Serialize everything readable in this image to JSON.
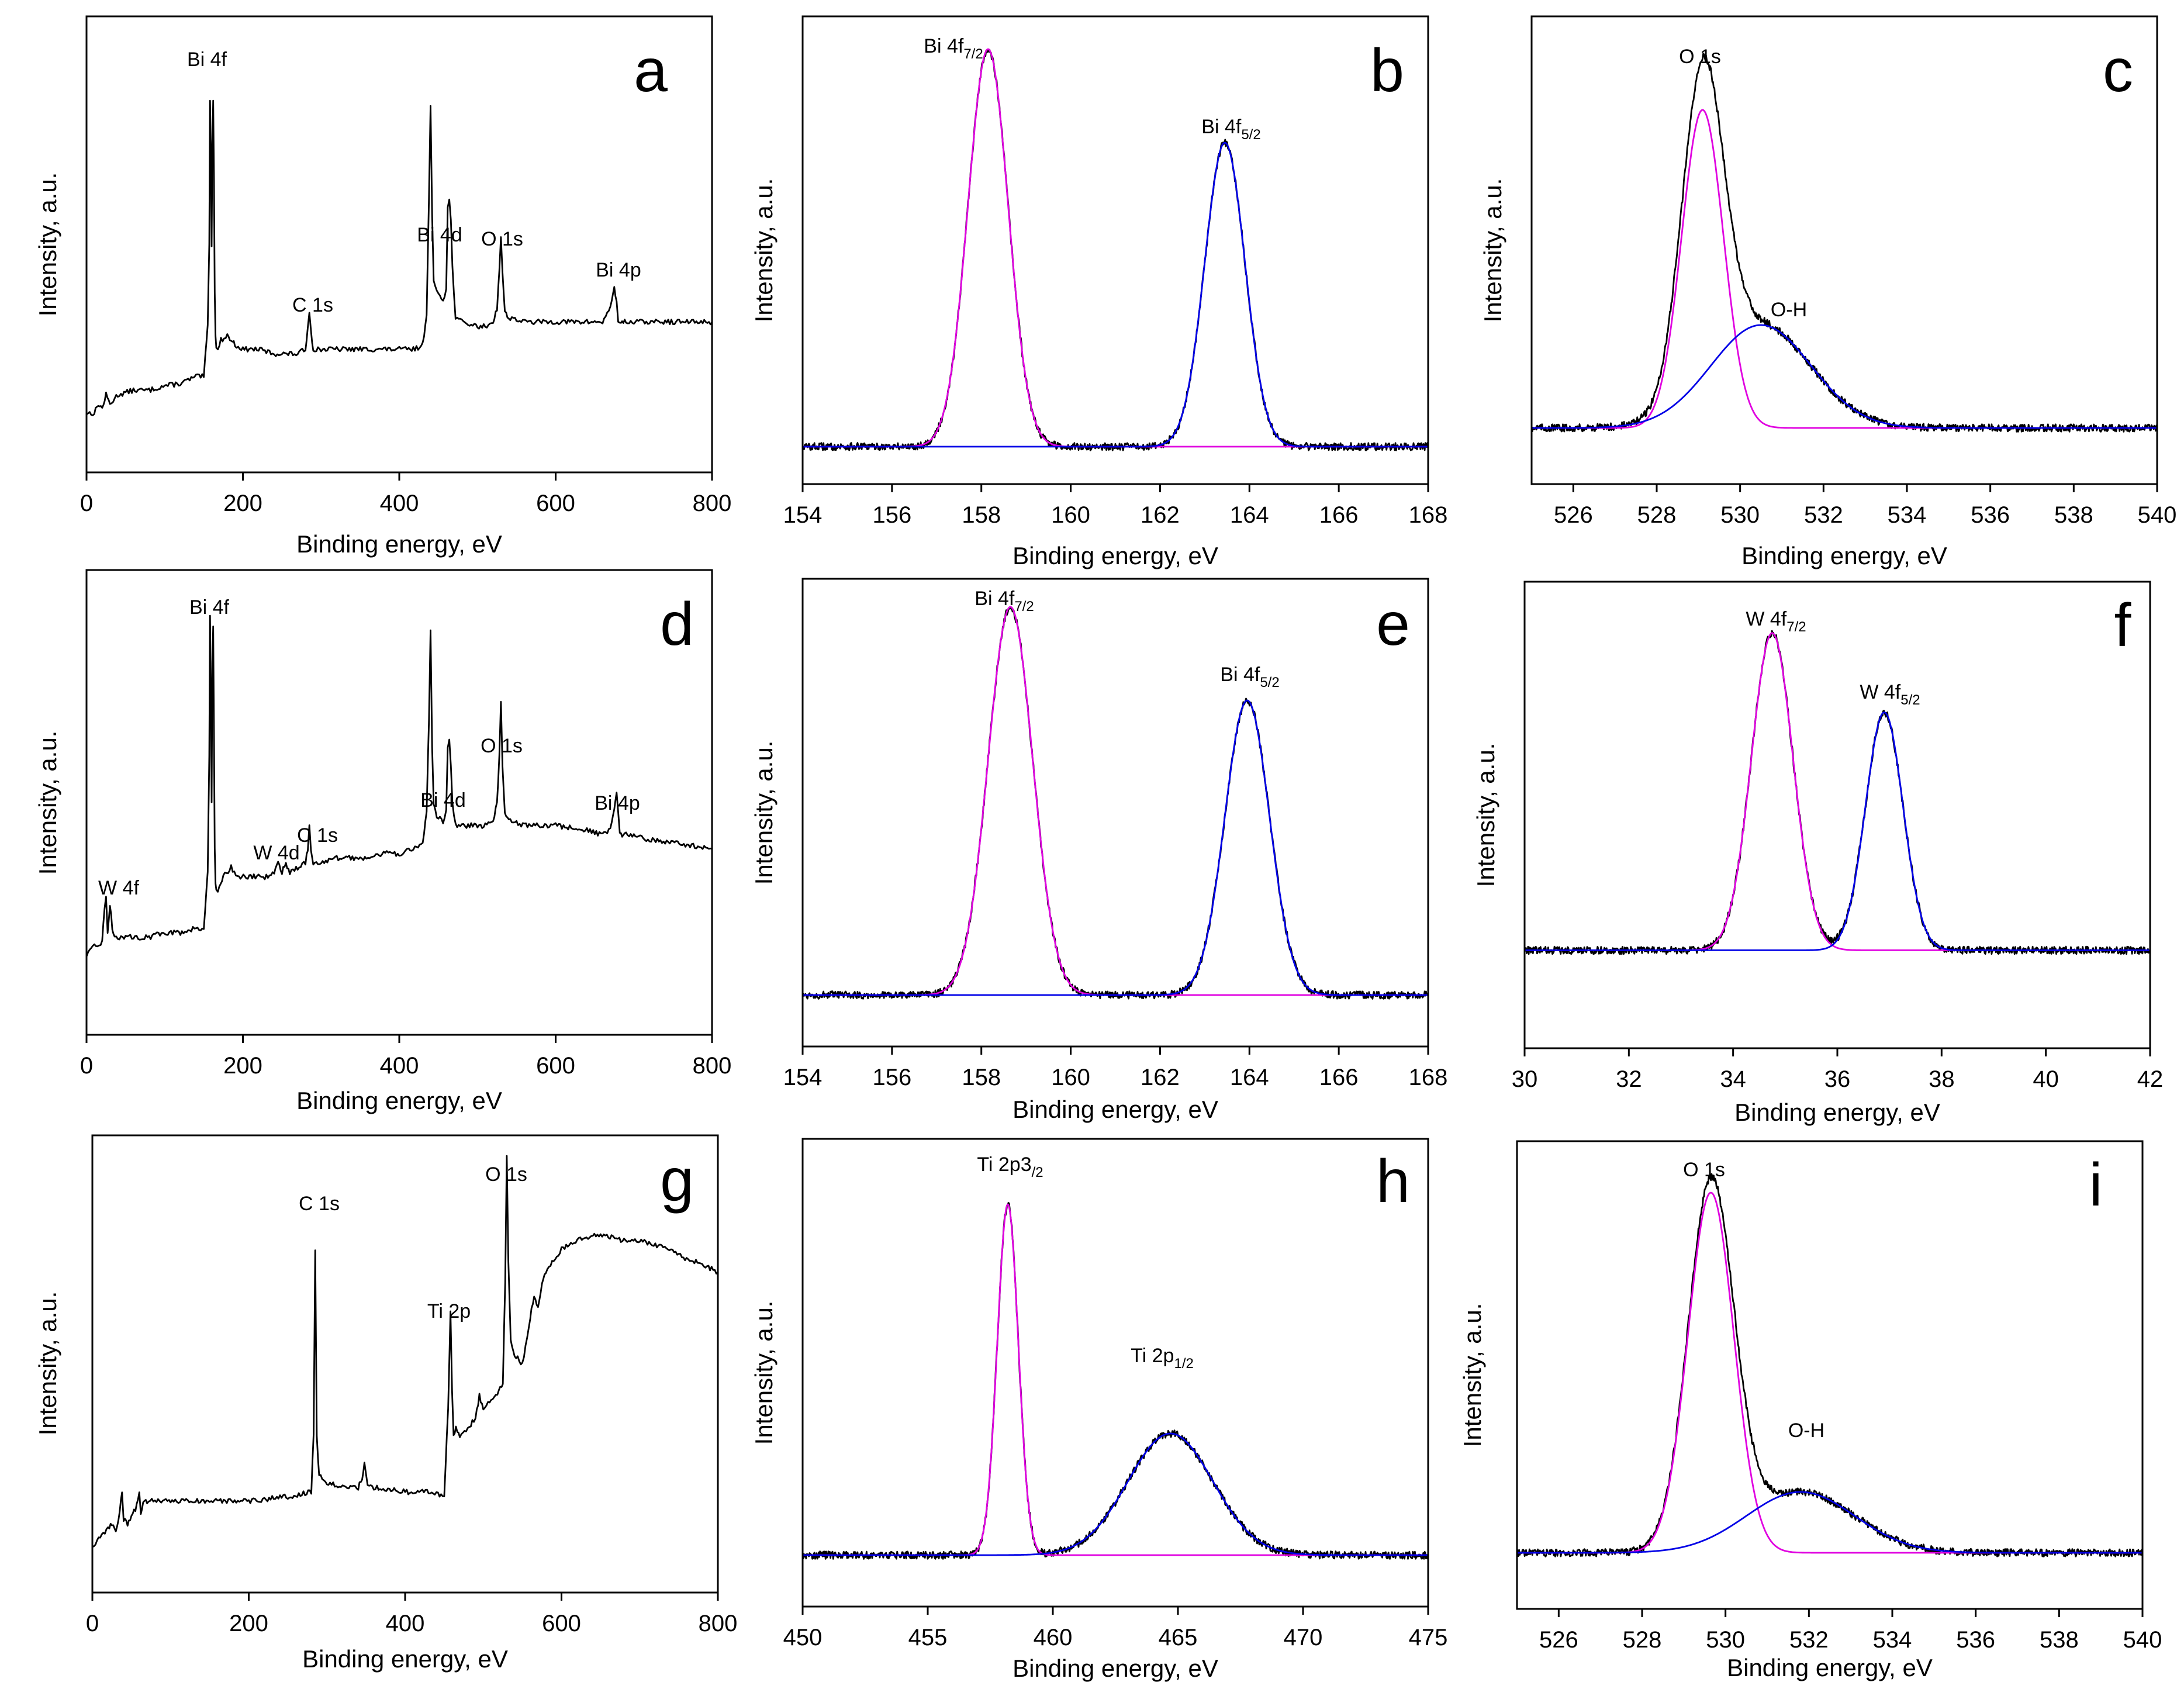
{
  "colors": {
    "measured": "#000000",
    "component_1": "#e000e0",
    "component_2": "#0000e6",
    "background": "#ffffff"
  },
  "chart_data": [
    {
      "id": "a",
      "type": "line",
      "label": "a",
      "xlabel": "Binding energy, eV",
      "ylabel": "Intensity, a.u.",
      "xlim": [
        0,
        800
      ],
      "ylim": [
        0,
        100
      ],
      "xticks": [
        0,
        200,
        400,
        600,
        800
      ],
      "series": [
        {
          "name": "survey",
          "color": "#000000",
          "x": [
            0,
            10,
            15,
            20,
            25,
            30,
            40,
            60,
            80,
            100,
            120,
            140,
            150,
            155,
            157,
            158,
            159,
            160,
            161,
            162,
            163,
            164,
            165,
            166,
            168,
            172,
            180,
            185,
            190,
            200,
            220,
            240,
            260,
            270,
            280,
            283,
            285,
            287,
            290,
            300,
            320,
            350,
            380,
            400,
            420,
            430,
            435,
            438,
            440,
            442,
            444,
            448,
            452,
            456,
            460,
            462,
            464,
            466,
            468,
            472,
            480,
            500,
            510,
            520,
            525,
            528,
            530,
            532,
            535,
            540,
            560,
            600,
            640,
            660,
            670,
            675,
            678,
            680,
            682,
            685,
            690,
            700,
            720,
            760,
            800
          ],
          "y": [
            13,
            13,
            15,
            14,
            17,
            15,
            17,
            18,
            18,
            19,
            19.5,
            21,
            21,
            32,
            50,
            82,
            70,
            50,
            72,
            82,
            65,
            40,
            30,
            27,
            27,
            29,
            30,
            29,
            28,
            27,
            27,
            26,
            26,
            26,
            27,
            32,
            35,
            31,
            27,
            27,
            27,
            27,
            27,
            27,
            27,
            28,
            35,
            60,
            80,
            56,
            42,
            40,
            39,
            38,
            40,
            58,
            60,
            55,
            45,
            34,
            33,
            32,
            32,
            33,
            36,
            44,
            52,
            44,
            35,
            34,
            33,
            33,
            33,
            33,
            36,
            41,
            37,
            33,
            33,
            33,
            33,
            33,
            33,
            33,
            33
          ]
        }
      ],
      "annotations": [
        "Bi 4f",
        "C 1s",
        "Bi 4d",
        "O 1s",
        "Bi 4p"
      ]
    },
    {
      "id": "b",
      "type": "line",
      "label": "b",
      "xlabel": "Binding energy, eV",
      "ylabel": "Intensity, a.u.",
      "xlim": [
        154,
        168
      ],
      "ylim": [
        0,
        100
      ],
      "xticks": [
        154,
        156,
        158,
        160,
        162,
        164,
        166,
        168
      ],
      "baseline": 8,
      "peaks": [
        {
          "name": "Bi 4f7/2",
          "center": 158.15,
          "sigma": 0.45,
          "height": 85,
          "color": "#e000e0"
        },
        {
          "name": "Bi 4f5/2",
          "center": 163.45,
          "sigma": 0.45,
          "height": 65,
          "color": "#0000e6"
        }
      ],
      "annotations": [
        "Bi 4f",
        "7/2",
        "Bi 4f",
        "5/2"
      ]
    },
    {
      "id": "c",
      "type": "line",
      "label": "c",
      "xlabel": "Binding energy, eV",
      "ylabel": "Intensity, a.u.",
      "xlim": [
        525,
        540
      ],
      "ylim": [
        0,
        100
      ],
      "xticks": [
        526,
        528,
        530,
        532,
        534,
        536,
        538,
        540
      ],
      "baseline": 12,
      "peaks": [
        {
          "name": "O 1s",
          "center": 529.1,
          "sigma": 0.5,
          "height": 68,
          "color": "#e000e0"
        },
        {
          "name": "O-H",
          "center": 530.5,
          "sigma": 1.2,
          "height": 22,
          "color": "#0000e6"
        }
      ],
      "annotations": [
        "O 1s",
        "O-H"
      ]
    },
    {
      "id": "d",
      "type": "line",
      "label": "d",
      "xlabel": "Binding energy, eV",
      "ylabel": "Intensity, a.u.",
      "xlim": [
        0,
        800
      ],
      "ylim": [
        0,
        100
      ],
      "xticks": [
        0,
        200,
        400,
        600,
        800
      ],
      "series": [
        {
          "name": "survey",
          "color": "#000000",
          "x": [
            0,
            10,
            20,
            23,
            25,
            27,
            30,
            33,
            36,
            40,
            60,
            80,
            100,
            120,
            140,
            150,
            155,
            157,
            158,
            159,
            160,
            161,
            162,
            163,
            164,
            165,
            166,
            168,
            175,
            185,
            195,
            210,
            230,
            240,
            245,
            250,
            255,
            260,
            270,
            280,
            283,
            285,
            287,
            290,
            300,
            320,
            350,
            380,
            400,
            420,
            430,
            435,
            438,
            440,
            442,
            444,
            448,
            452,
            456,
            460,
            462,
            464,
            466,
            468,
            472,
            480,
            500,
            510,
            520,
            525,
            528,
            530,
            532,
            535,
            540,
            560,
            600,
            640,
            660,
            670,
            675,
            678,
            680,
            682,
            685,
            690,
            700,
            720,
            760,
            800
          ],
          "y": [
            17,
            19,
            20,
            27,
            30,
            22,
            28,
            23,
            21,
            21,
            21,
            21,
            22,
            22,
            23,
            23,
            35,
            60,
            90,
            72,
            50,
            80,
            88,
            65,
            40,
            33,
            31,
            31,
            34,
            36,
            34,
            34,
            34,
            35,
            37,
            35,
            37,
            35,
            36,
            37,
            40,
            45,
            40,
            37,
            37,
            38,
            38,
            39,
            39,
            40,
            41,
            48,
            68,
            87,
            62,
            50,
            47,
            47,
            46,
            48,
            62,
            64,
            58,
            50,
            45,
            45,
            45,
            45,
            46,
            50,
            60,
            72,
            58,
            48,
            46,
            45,
            45,
            44,
            43,
            44,
            48,
            52,
            48,
            43,
            43,
            43,
            43,
            42,
            41,
            40
          ]
        }
      ],
      "annotations": [
        "Bi 4f",
        "W 4f",
        "W 4d",
        "C 1s",
        "Bi 4d",
        "O 1s",
        "Bi 4p"
      ]
    },
    {
      "id": "e",
      "type": "line",
      "label": "e",
      "xlabel": "Binding energy, eV",
      "ylabel": "Intensity, a.u.",
      "xlim": [
        154,
        168
      ],
      "ylim": [
        0,
        100
      ],
      "xticks": [
        154,
        156,
        158,
        160,
        162,
        164,
        166,
        168
      ],
      "baseline": 11,
      "peaks": [
        {
          "name": "Bi 4f7/2",
          "center": 158.65,
          "sigma": 0.5,
          "height": 83,
          "color": "#e000e0"
        },
        {
          "name": "Bi 4f5/2",
          "center": 163.95,
          "sigma": 0.5,
          "height": 63,
          "color": "#0000e6"
        }
      ],
      "annotations": [
        "Bi 4f",
        "7/2",
        "Bi 4f",
        "5/2"
      ]
    },
    {
      "id": "f",
      "type": "line",
      "label": "f",
      "xlabel": "Binding energy, eV",
      "ylabel": "Intensity, a.u.",
      "xlim": [
        30,
        42
      ],
      "ylim": [
        0,
        100
      ],
      "xticks": [
        30,
        32,
        34,
        36,
        38,
        40,
        42
      ],
      "baseline": 21,
      "peaks": [
        {
          "name": "W 4f7/2",
          "center": 34.75,
          "sigma": 0.4,
          "height": 68,
          "color": "#e000e0"
        },
        {
          "name": "W 4f5/2",
          "center": 36.9,
          "sigma": 0.36,
          "height": 51,
          "color": "#0000e6"
        }
      ],
      "annotations": [
        "W 4f",
        "7/2",
        "W 4f",
        "5/2"
      ]
    },
    {
      "id": "g",
      "type": "line",
      "label": "g",
      "xlabel": "Binding energy, eV",
      "ylabel": "Intensity, a.u.",
      "xlim": [
        0,
        800
      ],
      "ylim": [
        0,
        100
      ],
      "xticks": [
        0,
        200,
        400,
        600,
        800
      ],
      "series": [
        {
          "name": "survey",
          "color": "#000000",
          "x": [
            0,
            10,
            20,
            25,
            30,
            35,
            38,
            40,
            45,
            50,
            55,
            60,
            62,
            65,
            70,
            100,
            150,
            200,
            250,
            280,
            283,
            285,
            287,
            290,
            300,
            320,
            340,
            345,
            348,
            352,
            360,
            400,
            430,
            450,
            455,
            458,
            460,
            462,
            465,
            470,
            480,
            490,
            495,
            500,
            510,
            520,
            525,
            528,
            530,
            532,
            535,
            540,
            550,
            560,
            565,
            570,
            575,
            580,
            600,
            620,
            640,
            660,
            680,
            700,
            720,
            740,
            760,
            780,
            800
          ],
          "y": [
            10,
            12,
            14,
            15,
            13,
            18,
            22,
            16,
            15,
            17,
            18,
            22,
            17,
            20,
            20,
            20,
            20,
            20,
            21,
            22,
            35,
            75,
            34,
            26,
            24,
            23,
            23,
            25,
            28,
            24,
            23,
            22,
            22,
            21,
            40,
            62,
            44,
            34,
            36,
            34,
            36,
            38,
            43,
            40,
            42,
            44,
            46,
            68,
            95,
            72,
            55,
            52,
            50,
            60,
            65,
            62,
            68,
            70,
            75,
            77,
            78,
            78,
            77,
            77,
            76,
            75,
            73,
            72,
            70
          ]
        }
      ],
      "annotations": [
        "C 1s",
        "O 1s",
        "Ti 2p"
      ]
    },
    {
      "id": "h",
      "type": "line",
      "label": "h",
      "xlabel": "Binding energy, eV",
      "ylabel": "Intensity, a.u.",
      "xlim": [
        450,
        475
      ],
      "ylim": [
        0,
        100
      ],
      "xticks": [
        450,
        455,
        460,
        465,
        470,
        475
      ],
      "baseline": 11,
      "peaks": [
        {
          "name": "Ti 2p3/2",
          "center": 458.2,
          "sigma": 0.42,
          "height": 75,
          "color": "#e000e0"
        },
        {
          "name": "Ti 2p1/2",
          "center": 464.7,
          "sigma": 1.7,
          "height": 26,
          "color": "#0000e6"
        }
      ],
      "annotations": [
        "Ti 2p3",
        "/2",
        "Ti 2p",
        "1/2"
      ]
    },
    {
      "id": "i",
      "type": "line",
      "label": "i",
      "xlabel": "Binding energy, eV",
      "ylabel": "Intensity, a.u.",
      "xlim": [
        525,
        540
      ],
      "ylim": [
        0,
        100
      ],
      "xticks": [
        526,
        528,
        530,
        532,
        534,
        536,
        538,
        540
      ],
      "baseline": 12,
      "peaks": [
        {
          "name": "O 1s",
          "center": 529.65,
          "sigma": 0.55,
          "height": 77,
          "color": "#e000e0"
        },
        {
          "name": "O-H",
          "center": 531.8,
          "sigma": 1.3,
          "height": 13,
          "color": "#0000e6"
        }
      ],
      "annotations": [
        "O 1s",
        "O-H"
      ]
    }
  ]
}
